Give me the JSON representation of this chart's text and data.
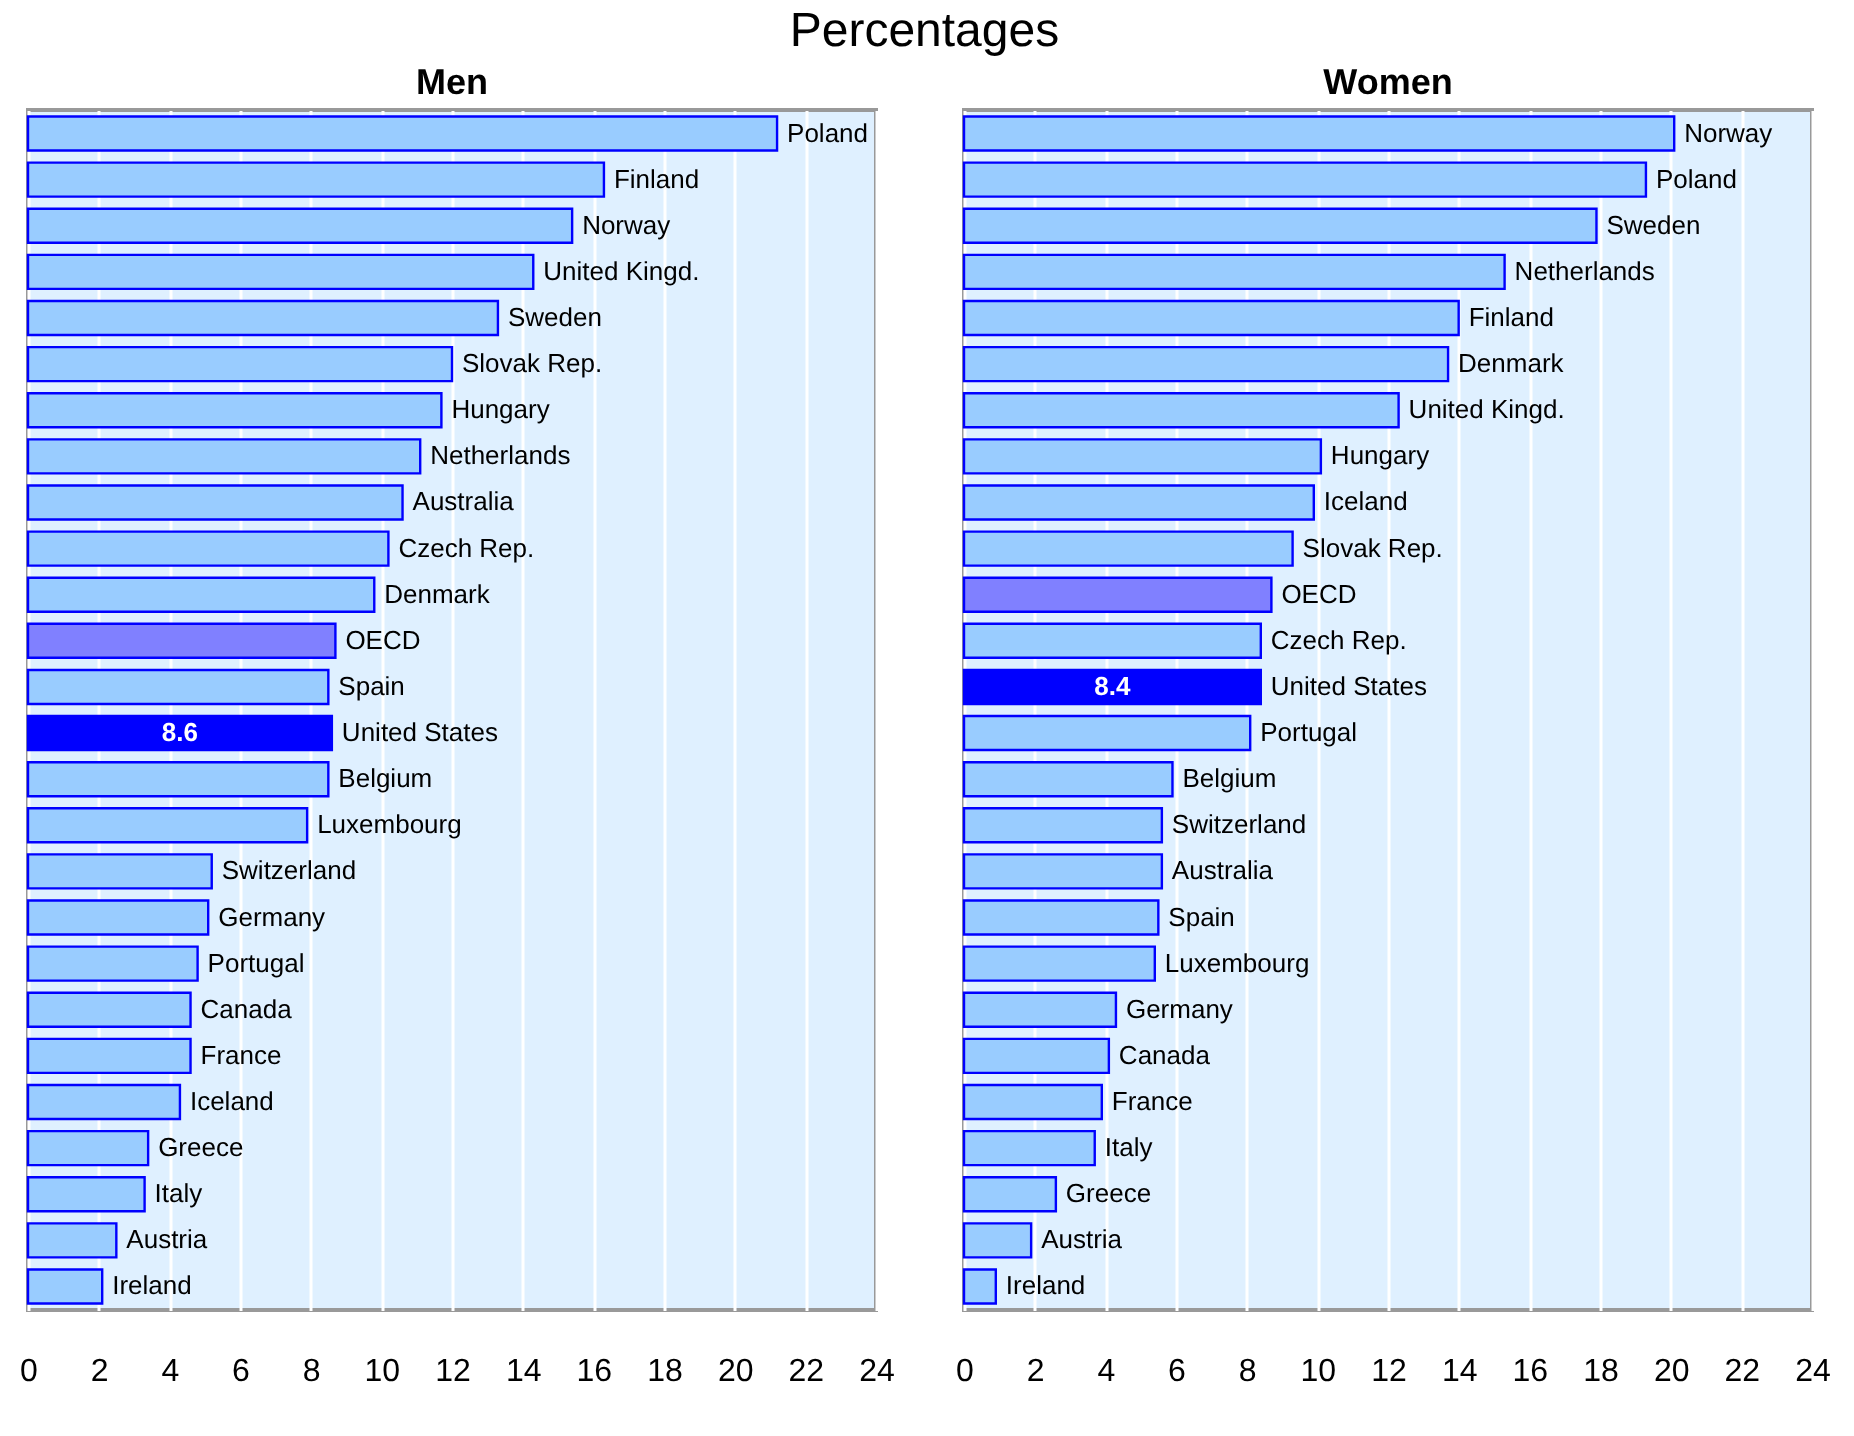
{
  "chart_data": [
    {
      "type": "bar",
      "orientation": "horizontal",
      "title": "Men",
      "annotations": [
        "Percentages"
      ],
      "categories": [
        "Poland",
        "Finland",
        "Norway",
        "United Kingd.",
        "Sweden",
        "Slovak Rep.",
        "Hungary",
        "Netherlands",
        "Australia",
        "Czech Rep.",
        "Denmark",
        "OECD",
        "Spain",
        "United States",
        "Belgium",
        "Luxembourg",
        "Switzerland",
        "Germany",
        "Portugal",
        "Canada",
        "France",
        "Iceland",
        "Greece",
        "Italy",
        "Austria",
        "Ireland"
      ],
      "values": [
        21.2,
        16.3,
        15.4,
        14.3,
        13.3,
        12.0,
        11.7,
        11.1,
        10.6,
        10.2,
        9.8,
        8.7,
        8.5,
        8.6,
        8.5,
        7.9,
        5.2,
        5.1,
        4.8,
        4.6,
        4.6,
        4.3,
        3.4,
        3.3,
        2.5,
        2.1
      ],
      "colors": [
        "#99ccff",
        "#99ccff",
        "#99ccff",
        "#99ccff",
        "#99ccff",
        "#99ccff",
        "#99ccff",
        "#99ccff",
        "#99ccff",
        "#99ccff",
        "#99ccff",
        "#8080ff",
        "#99ccff",
        "#0000ff",
        "#99ccff",
        "#99ccff",
        "#99ccff",
        "#99ccff",
        "#99ccff",
        "#99ccff",
        "#99ccff",
        "#99ccff",
        "#99ccff",
        "#99ccff",
        "#99ccff",
        "#99ccff"
      ],
      "value_labels": [
        null,
        null,
        null,
        null,
        null,
        null,
        null,
        null,
        null,
        null,
        null,
        null,
        null,
        "8.6",
        null,
        null,
        null,
        null,
        null,
        null,
        null,
        null,
        null,
        null,
        null,
        null
      ],
      "xlim": [
        0,
        24
      ],
      "xticks": [
        0,
        2,
        4,
        6,
        8,
        10,
        12,
        14,
        16,
        18,
        20,
        22,
        24
      ],
      "grid": "x",
      "tick_labels": "x"
    },
    {
      "type": "bar",
      "orientation": "horizontal",
      "title": "Women",
      "categories": [
        "Norway",
        "Poland",
        "Sweden",
        "Netherlands",
        "Finland",
        "Denmark",
        "United Kingd.",
        "Hungary",
        "Iceland",
        "Slovak Rep.",
        "OECD",
        "Czech Rep.",
        "United States",
        "Portugal",
        "Belgium",
        "Switzerland",
        "Australia",
        "Spain",
        "Luxembourg",
        "Germany",
        "Canada",
        "France",
        "Italy",
        "Greece",
        "Austria",
        "Ireland"
      ],
      "values": [
        20.1,
        19.3,
        17.9,
        15.3,
        14.0,
        13.7,
        12.3,
        10.1,
        9.9,
        9.3,
        8.7,
        8.4,
        8.4,
        8.1,
        5.9,
        5.6,
        5.6,
        5.5,
        5.4,
        4.3,
        4.1,
        3.9,
        3.7,
        2.6,
        1.9,
        0.9
      ],
      "colors": [
        "#99ccff",
        "#99ccff",
        "#99ccff",
        "#99ccff",
        "#99ccff",
        "#99ccff",
        "#99ccff",
        "#99ccff",
        "#99ccff",
        "#99ccff",
        "#8080ff",
        "#99ccff",
        "#0000ff",
        "#99ccff",
        "#99ccff",
        "#99ccff",
        "#99ccff",
        "#99ccff",
        "#99ccff",
        "#99ccff",
        "#99ccff",
        "#99ccff",
        "#99ccff",
        "#99ccff",
        "#99ccff",
        "#99ccff"
      ],
      "value_labels": [
        null,
        null,
        null,
        null,
        null,
        null,
        null,
        null,
        null,
        null,
        null,
        null,
        "8.4",
        null,
        null,
        null,
        null,
        null,
        null,
        null,
        null,
        null,
        null,
        null,
        null,
        null
      ],
      "xlim": [
        0,
        24
      ],
      "xticks": [
        0,
        2,
        4,
        6,
        8,
        10,
        12,
        14,
        16,
        18,
        20,
        22,
        24
      ],
      "grid": "x",
      "tick_labels": "x"
    }
  ]
}
